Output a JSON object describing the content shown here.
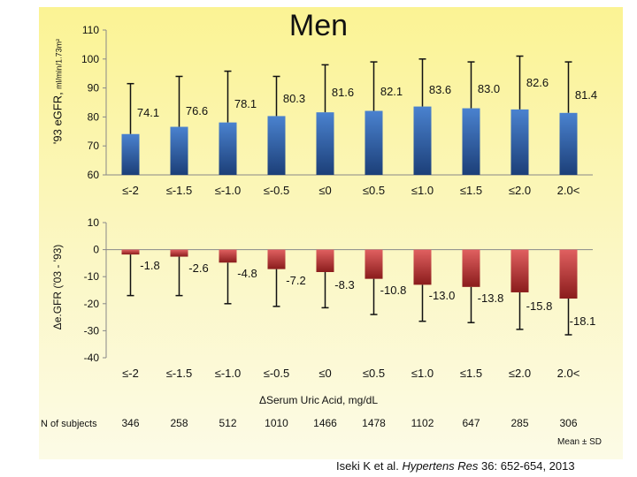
{
  "title": "Men",
  "chart_data": [
    {
      "type": "bar",
      "title": "Men",
      "ylabel_main": "'93 eGFR,",
      "ylabel_unit": "ml/min/1.73m²",
      "categories": [
        "≤-2",
        "≤-1.5",
        "≤-1.0",
        "≤-0.5",
        "≤0",
        "≤0.5",
        "≤1.0",
        "≤1.5",
        "≤2.0",
        "2.0<"
      ],
      "values": [
        74.1,
        76.6,
        78.1,
        80.3,
        81.6,
        82.1,
        83.6,
        83.0,
        82.6,
        81.4
      ],
      "value_labels": [
        "74.1",
        "76.6",
        "78.1",
        "80.3",
        "81.6",
        "82.1",
        "83.6",
        "83.0",
        "82.6",
        "81.4"
      ],
      "error_upper": [
        91.5,
        94.0,
        95.8,
        94.0,
        98.0,
        99.0,
        100.0,
        99.0,
        101.0,
        99.0
      ],
      "yticks": [
        60,
        70,
        80,
        90,
        100,
        110
      ],
      "ylim": [
        60,
        110
      ],
      "color": "#2e5fa3"
    },
    {
      "type": "bar",
      "ylabel": "Δe.GFR ('03 - '93)",
      "categories": [
        "≤-2",
        "≤-1.5",
        "≤-1.0",
        "≤-0.5",
        "≤0",
        "≤0.5",
        "≤1.0",
        "≤1.5",
        "≤2.0",
        "2.0<"
      ],
      "values": [
        -1.8,
        -2.6,
        -4.8,
        -7.2,
        -8.3,
        -10.8,
        -13.0,
        -13.8,
        -15.8,
        -18.1
      ],
      "value_labels": [
        "-1.8",
        "-2.6",
        "-4.8",
        "-7.2",
        "-8.3",
        "-10.8",
        "-13.0",
        "-13.8",
        "-15.8",
        "-18.1"
      ],
      "error_lower": [
        -17.0,
        -17.0,
        -20.0,
        -21.0,
        -21.5,
        -24.0,
        -26.5,
        -27.0,
        -29.5,
        -31.5
      ],
      "yticks": [
        -40,
        -30,
        -20,
        -10,
        0,
        10
      ],
      "ylim": [
        -40,
        10
      ],
      "color": "#b03030"
    }
  ],
  "xtitle": "ΔSerum Uric Acid, mg/dL",
  "subjects_label": "N of subjects",
  "subjects": [
    "346",
    "258",
    "512",
    "1010",
    "1466",
    "1478",
    "1102",
    "647",
    "285",
    "306"
  ],
  "note": "Mean ± SD",
  "citation": {
    "authors": "Iseki K et al.",
    "journal": "Hypertens Res",
    "ref": "36: 652-654, 2013"
  }
}
